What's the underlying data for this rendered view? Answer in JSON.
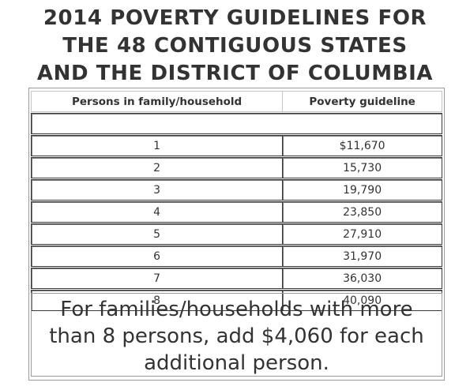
{
  "title": {
    "line1": "2014 POVERTY GUIDELINES FOR",
    "line2": "THE 48 CONTIGUOUS STATES",
    "line3": "AND THE DISTRICT OF COLUMBIA"
  },
  "table": {
    "headers": [
      "Persons in family/household",
      "Poverty guideline"
    ],
    "rows": [
      [
        "1",
        "$11,670"
      ],
      [
        "2",
        "15,730"
      ],
      [
        "3",
        "19,790"
      ],
      [
        "4",
        "23,850"
      ],
      [
        "5",
        "27,910"
      ],
      [
        "6",
        "31,970"
      ],
      [
        "7",
        "36,030"
      ],
      [
        "8",
        "40,090"
      ]
    ]
  },
  "footnote": {
    "line1": "For families/households with more",
    "line2": "than 8 persons, add $4,060 for each",
    "line3": "additional person."
  }
}
